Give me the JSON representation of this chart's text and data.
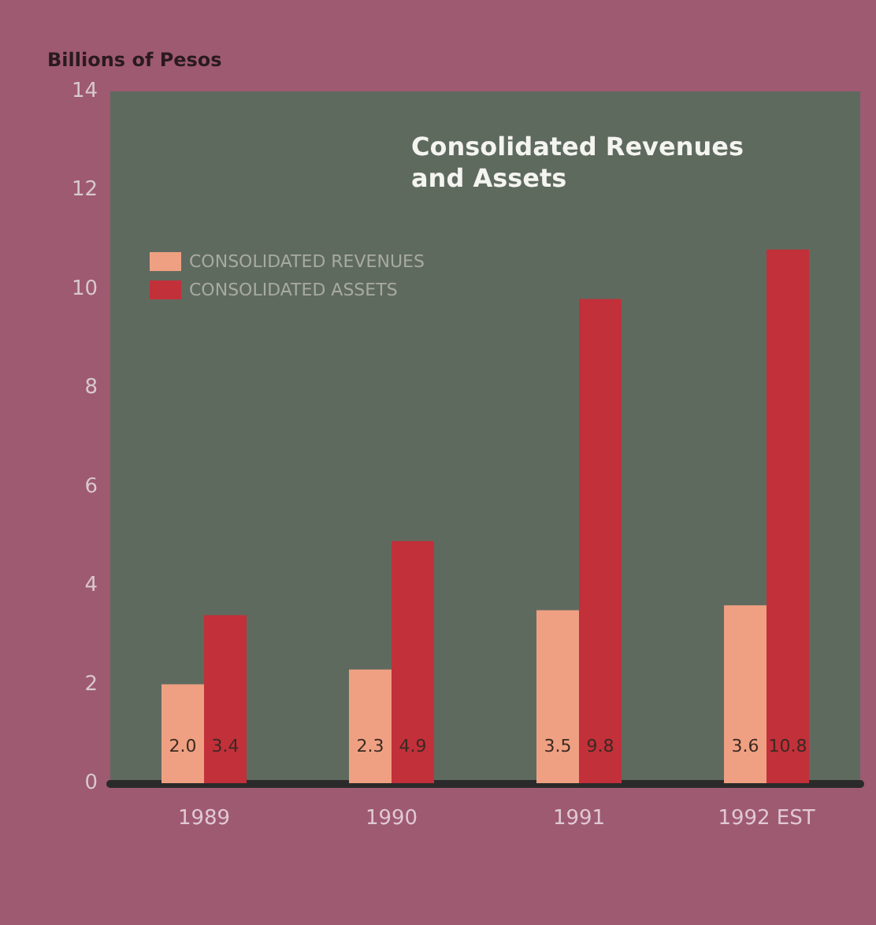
{
  "chart_data": {
    "type": "bar",
    "title": "Consolidated Revenues and Assets",
    "ylabel": "Billions of Pesos",
    "categories": [
      "1989",
      "1990",
      "1991",
      "1992 EST"
    ],
    "series": [
      {
        "name": "CONSOLIDATED REVENUES",
        "color": "#f0a082",
        "values": [
          2.0,
          2.3,
          3.5,
          3.6
        ],
        "value_labels": [
          "2.0",
          "2.3",
          "3.5",
          "3.6"
        ]
      },
      {
        "name": "CONSOLIDATED ASSETS",
        "color": "#c2303a",
        "values": [
          3.4,
          4.9,
          9.8,
          10.8
        ],
        "value_labels": [
          "3.4",
          "4.9",
          "9.8",
          "10.8"
        ]
      }
    ],
    "ylim": [
      0,
      14
    ],
    "yticks": [
      0,
      2,
      4,
      6,
      8,
      10,
      12,
      14
    ],
    "grid": false,
    "legend": "top left"
  }
}
